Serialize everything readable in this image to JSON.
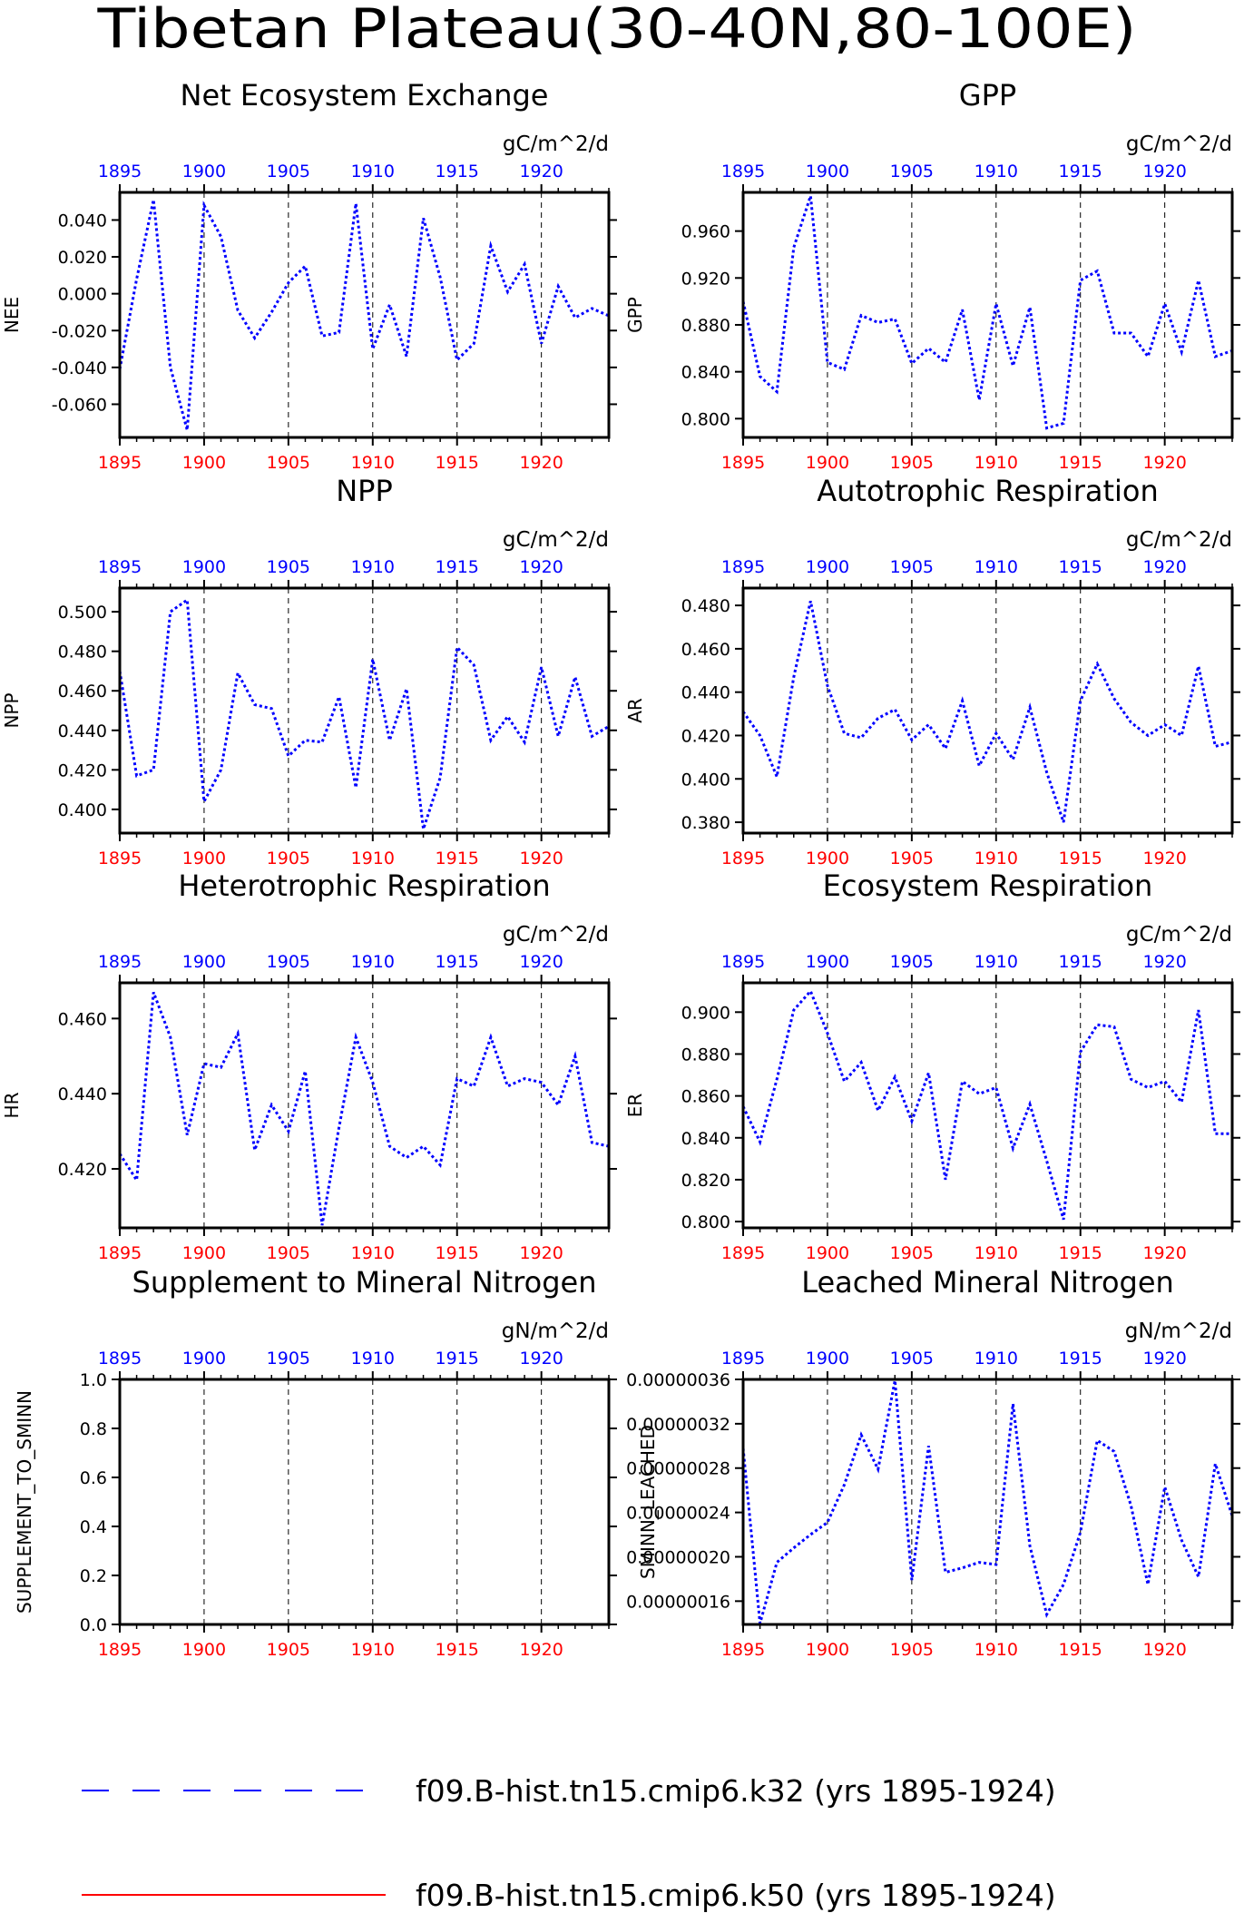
{
  "page_title": "Tibetan Plateau(30-40N,80-100E)",
  "colors": {
    "series_blue": "#0000ff",
    "series_red": "#ff0000",
    "top_axis": "#0000ff",
    "bottom_axis": "#ff0000",
    "frame": "#000000",
    "grid": "#000000"
  },
  "legend": {
    "items": [
      {
        "label": "f09.B-hist.tn15.cmip6.k32 (yrs 1895-1924)",
        "color": "#0000ff",
        "style": "dashed"
      },
      {
        "label": "f09.B-hist.tn15.cmip6.k50 (yrs 1895-1924)",
        "color": "#ff0000",
        "style": "solid"
      }
    ]
  },
  "chart_data": [
    {
      "type": "line",
      "title": "Net Ecosystem Exchange",
      "ylabel": "NEE",
      "units": "gC/m^2/d",
      "xlim": [
        1895,
        1924
      ],
      "ylim": [
        -0.078,
        0.055
      ],
      "xticks": [
        "1895",
        "1900",
        "1905",
        "1910",
        "1915",
        "1920"
      ],
      "yticks": [
        "0.040",
        "0.020",
        "0.000",
        "-0.020",
        "-0.040",
        "-0.060"
      ],
      "yticks_values": [
        0.04,
        0.02,
        0.0,
        -0.02,
        -0.04,
        -0.06
      ],
      "grid_x": [
        1900,
        1905,
        1910,
        1915,
        1920
      ],
      "x": [
        1895,
        1896,
        1897,
        1898,
        1899,
        1900,
        1901,
        1902,
        1903,
        1904,
        1905,
        1906,
        1907,
        1908,
        1909,
        1910,
        1911,
        1912,
        1913,
        1914,
        1915,
        1916,
        1917,
        1918,
        1919,
        1920,
        1921,
        1922,
        1923,
        1924
      ],
      "series": [
        {
          "values": [
            -0.041,
            0.008,
            0.051,
            -0.04,
            -0.074,
            0.048,
            0.031,
            -0.009,
            -0.024,
            -0.01,
            0.006,
            0.015,
            -0.023,
            -0.021,
            0.049,
            -0.03,
            -0.006,
            -0.034,
            0.041,
            0.009,
            -0.036,
            -0.027,
            0.026,
            0.001,
            0.016,
            -0.027,
            0.004,
            -0.013,
            -0.008,
            -0.012
          ]
        }
      ]
    },
    {
      "type": "line",
      "title": "GPP",
      "ylabel": "GPP",
      "units": "gC/m^2/d",
      "xlim": [
        1895,
        1924
      ],
      "ylim": [
        0.784,
        0.993
      ],
      "xticks": [
        "1895",
        "1900",
        "1905",
        "1910",
        "1915",
        "1920"
      ],
      "yticks": [
        "0.960",
        "0.920",
        "0.880",
        "0.840",
        "0.800"
      ],
      "yticks_values": [
        0.96,
        0.92,
        0.88,
        0.84,
        0.8
      ],
      "grid_x": [
        1900,
        1905,
        1910,
        1915,
        1920
      ],
      "x": [
        1895,
        1896,
        1897,
        1898,
        1899,
        1900,
        1901,
        1902,
        1903,
        1904,
        1905,
        1906,
        1907,
        1908,
        1909,
        1910,
        1911,
        1912,
        1913,
        1914,
        1915,
        1916,
        1917,
        1918,
        1919,
        1920,
        1921,
        1922,
        1923,
        1924
      ],
      "series": [
        {
          "values": [
            0.9,
            0.836,
            0.823,
            0.946,
            0.99,
            0.848,
            0.842,
            0.888,
            0.882,
            0.885,
            0.847,
            0.86,
            0.848,
            0.893,
            0.816,
            0.898,
            0.845,
            0.895,
            0.792,
            0.796,
            0.918,
            0.926,
            0.873,
            0.873,
            0.853,
            0.898,
            0.857,
            0.918,
            0.853,
            0.858
          ]
        }
      ]
    },
    {
      "type": "line",
      "title": "NPP",
      "ylabel": "NPP",
      "units": "gC/m^2/d",
      "xlim": [
        1895,
        1924
      ],
      "ylim": [
        0.388,
        0.512
      ],
      "xticks": [
        "1895",
        "1900",
        "1905",
        "1910",
        "1915",
        "1920"
      ],
      "yticks": [
        "0.500",
        "0.480",
        "0.460",
        "0.440",
        "0.420",
        "0.400"
      ],
      "yticks_values": [
        0.5,
        0.48,
        0.46,
        0.44,
        0.42,
        0.4
      ],
      "grid_x": [
        1900,
        1905,
        1910,
        1915,
        1920
      ],
      "x": [
        1895,
        1896,
        1897,
        1898,
        1899,
        1900,
        1901,
        1902,
        1903,
        1904,
        1905,
        1906,
        1907,
        1908,
        1909,
        1910,
        1911,
        1912,
        1913,
        1914,
        1915,
        1916,
        1917,
        1918,
        1919,
        1920,
        1921,
        1922,
        1923,
        1924
      ],
      "series": [
        {
          "values": [
            0.47,
            0.417,
            0.42,
            0.5,
            0.506,
            0.404,
            0.42,
            0.469,
            0.453,
            0.451,
            0.427,
            0.435,
            0.434,
            0.457,
            0.411,
            0.476,
            0.435,
            0.461,
            0.39,
            0.416,
            0.482,
            0.473,
            0.435,
            0.447,
            0.434,
            0.472,
            0.437,
            0.467,
            0.437,
            0.442
          ]
        }
      ]
    },
    {
      "type": "line",
      "title": "Autotrophic Respiration",
      "ylabel": "AR",
      "units": "gC/m^2/d",
      "xlim": [
        1895,
        1924
      ],
      "ylim": [
        0.375,
        0.488
      ],
      "xticks": [
        "1895",
        "1900",
        "1905",
        "1910",
        "1915",
        "1920"
      ],
      "yticks": [
        "0.480",
        "0.460",
        "0.440",
        "0.420",
        "0.400",
        "0.380"
      ],
      "yticks_values": [
        0.48,
        0.46,
        0.44,
        0.42,
        0.4,
        0.38
      ],
      "grid_x": [
        1900,
        1905,
        1910,
        1915,
        1920
      ],
      "x": [
        1895,
        1896,
        1897,
        1898,
        1899,
        1900,
        1901,
        1902,
        1903,
        1904,
        1905,
        1906,
        1907,
        1908,
        1909,
        1910,
        1911,
        1912,
        1913,
        1914,
        1915,
        1916,
        1917,
        1918,
        1919,
        1920,
        1921,
        1922,
        1923,
        1924
      ],
      "series": [
        {
          "values": [
            0.431,
            0.42,
            0.401,
            0.447,
            0.482,
            0.443,
            0.421,
            0.419,
            0.428,
            0.432,
            0.418,
            0.425,
            0.414,
            0.436,
            0.406,
            0.421,
            0.409,
            0.433,
            0.403,
            0.38,
            0.436,
            0.453,
            0.437,
            0.426,
            0.42,
            0.425,
            0.42,
            0.452,
            0.415,
            0.417
          ]
        }
      ]
    },
    {
      "type": "line",
      "title": "Heterotrophic Respiration",
      "ylabel": "HR",
      "units": "gC/m^2/d",
      "xlim": [
        1895,
        1924
      ],
      "ylim": [
        0.4043,
        0.4695
      ],
      "xticks": [
        "1895",
        "1900",
        "1905",
        "1910",
        "1915",
        "1920"
      ],
      "yticks": [
        "0.460",
        "0.440",
        "0.420"
      ],
      "yticks_values": [
        0.46,
        0.44,
        0.42
      ],
      "grid_x": [
        1900,
        1905,
        1910,
        1915,
        1920
      ],
      "x": [
        1895,
        1896,
        1897,
        1898,
        1899,
        1900,
        1901,
        1902,
        1903,
        1904,
        1905,
        1906,
        1907,
        1908,
        1909,
        1910,
        1911,
        1912,
        1913,
        1914,
        1915,
        1916,
        1917,
        1918,
        1919,
        1920,
        1921,
        1922,
        1923,
        1924
      ],
      "series": [
        {
          "values": [
            0.424,
            0.417,
            0.467,
            0.455,
            0.429,
            0.448,
            0.447,
            0.456,
            0.425,
            0.437,
            0.43,
            0.446,
            0.405,
            0.431,
            0.455,
            0.443,
            0.426,
            0.423,
            0.426,
            0.421,
            0.444,
            0.442,
            0.455,
            0.442,
            0.444,
            0.443,
            0.437,
            0.45,
            0.427,
            0.426
          ]
        }
      ]
    },
    {
      "type": "line",
      "title": "Ecosystem Respiration",
      "ylabel": "ER",
      "units": "gC/m^2/d",
      "xlim": [
        1895,
        1924
      ],
      "ylim": [
        0.797,
        0.914
      ],
      "xticks": [
        "1895",
        "1900",
        "1905",
        "1910",
        "1915",
        "1920"
      ],
      "yticks": [
        "0.900",
        "0.880",
        "0.860",
        "0.840",
        "0.820",
        "0.800"
      ],
      "yticks_values": [
        0.9,
        0.88,
        0.86,
        0.84,
        0.82,
        0.8
      ],
      "grid_x": [
        1900,
        1905,
        1910,
        1915,
        1920
      ],
      "x": [
        1895,
        1896,
        1897,
        1898,
        1899,
        1900,
        1901,
        1902,
        1903,
        1904,
        1905,
        1906,
        1907,
        1908,
        1909,
        1910,
        1911,
        1912,
        1913,
        1914,
        1915,
        1916,
        1917,
        1918,
        1919,
        1920,
        1921,
        1922,
        1923,
        1924
      ],
      "series": [
        {
          "values": [
            0.855,
            0.838,
            0.868,
            0.901,
            0.91,
            0.89,
            0.867,
            0.876,
            0.853,
            0.869,
            0.848,
            0.871,
            0.82,
            0.867,
            0.861,
            0.864,
            0.835,
            0.856,
            0.829,
            0.801,
            0.881,
            0.894,
            0.893,
            0.868,
            0.864,
            0.867,
            0.857,
            0.901,
            0.842,
            0.842
          ]
        }
      ]
    },
    {
      "type": "line",
      "title": "Supplement to Mineral Nitrogen",
      "ylabel": "SUPPLEMENT_TO_SMINN",
      "units": "gN/m^2/d",
      "xlim": [
        1895,
        1924
      ],
      "ylim": [
        0,
        1.0
      ],
      "xticks": [
        "1895",
        "1900",
        "1905",
        "1910",
        "1915",
        "1920"
      ],
      "yticks": [
        "1.0",
        "0.8",
        "0.6",
        "0.4",
        "0.2",
        "0.0"
      ],
      "yticks_values": [
        1.0,
        0.8,
        0.6,
        0.4,
        0.2,
        0.0
      ],
      "grid_x": [
        1900,
        1905,
        1910,
        1915,
        1920
      ],
      "x": [],
      "series": []
    },
    {
      "type": "line",
      "title": "Leached Mineral Nitrogen",
      "ylabel": "SMINN_LEACHED",
      "units": "gN/m^2/d",
      "xlim": [
        1895,
        1924
      ],
      "ylim": [
        1.39e-07,
        3.6e-07
      ],
      "xticks": [
        "1895",
        "1900",
        "1905",
        "1910",
        "1915",
        "1920"
      ],
      "yticks": [
        "0.00000036",
        "0.00000032",
        "0.00000028",
        "0.00000024",
        "0.00000020",
        "0.00000016"
      ],
      "yticks_values": [
        3.6e-07,
        3.2e-07,
        2.8e-07,
        2.4e-07,
        2e-07,
        1.6e-07
      ],
      "grid_x": [
        1900,
        1905,
        1910,
        1915,
        1920
      ],
      "x": [
        1895,
        1896,
        1897,
        1898,
        1899,
        1900,
        1901,
        1902,
        1903,
        1904,
        1905,
        1906,
        1907,
        1908,
        1909,
        1910,
        1911,
        1912,
        1913,
        1914,
        1915,
        1916,
        1917,
        1918,
        1919,
        1920,
        1921,
        1922,
        1923,
        1924
      ],
      "series": [
        {
          "values": [
            2.98e-07,
            1.4e-07,
            1.95e-07,
            2.08e-07,
            2.2e-07,
            2.31e-07,
            2.65e-07,
            3.1e-07,
            2.79e-07,
            3.59e-07,
            1.79e-07,
            3e-07,
            1.86e-07,
            1.9e-07,
            1.95e-07,
            1.93e-07,
            3.38e-07,
            2.1e-07,
            1.48e-07,
            1.75e-07,
            2.22e-07,
            3.05e-07,
            2.95e-07,
            2.46e-07,
            1.75e-07,
            2.63e-07,
            2.15e-07,
            1.82e-07,
            2.84e-07,
            2.37e-07
          ]
        }
      ]
    }
  ]
}
